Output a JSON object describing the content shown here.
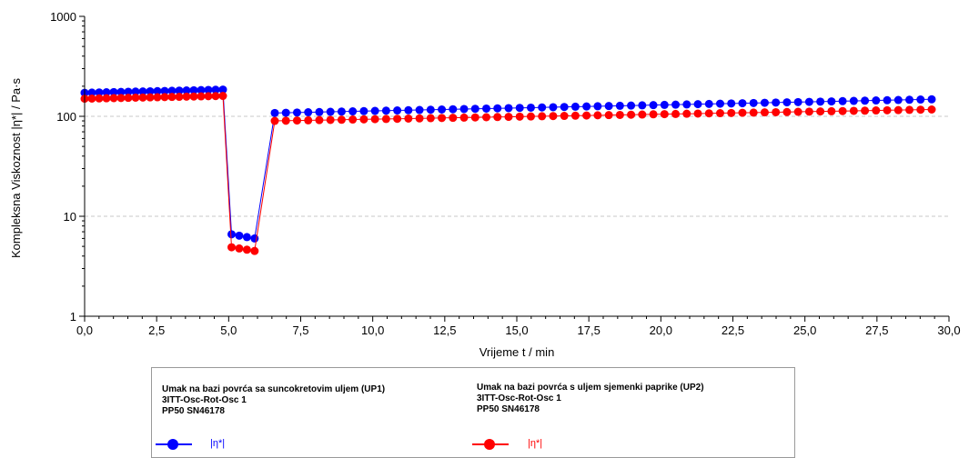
{
  "chart_data": {
    "type": "scatter",
    "xlabel": "Vrijeme t / min",
    "ylabel": "Kompleksna Viskoznost |η*| / Pa·s",
    "xlim": [
      0,
      30
    ],
    "ylim": [
      1,
      1000
    ],
    "y_scale": "log",
    "x_ticks": [
      "0,0",
      "2,5",
      "5,0",
      "7,5",
      "10,0",
      "12,5",
      "15,0",
      "17,5",
      "20,0",
      "22,5",
      "25,0",
      "27,5",
      "30,0"
    ],
    "y_ticks": [
      "1",
      "10",
      "100",
      "1000"
    ],
    "grid": "horizontal dashed",
    "legend_position": "bottom",
    "series": [
      {
        "name": "|η*|",
        "color": "#0000ff",
        "segments": [
          {
            "x_start": 0,
            "x_end": 4.8,
            "n": 20,
            "y_start": 172,
            "y_end": 185
          },
          {
            "x_start": 5.1,
            "x_end": 5.9,
            "n": 4,
            "y_start": 6.6,
            "y_end": 6.0
          },
          {
            "x_start": 6.6,
            "x_end": 29.4,
            "n": 60,
            "y_start": 108,
            "y_end": 148
          }
        ]
      },
      {
        "name": "|η*|",
        "color": "#ff0000",
        "segments": [
          {
            "x_start": 0,
            "x_end": 4.8,
            "n": 20,
            "y_start": 150,
            "y_end": 160
          },
          {
            "x_start": 5.1,
            "x_end": 5.9,
            "n": 4,
            "y_start": 4.9,
            "y_end": 4.5
          },
          {
            "x_start": 6.6,
            "x_end": 29.4,
            "n": 60,
            "y_start": 90,
            "y_end": 117
          }
        ]
      }
    ]
  },
  "legend": {
    "entries": [
      {
        "title": "Umak na bazi povrća sa suncokretovim uljem (UP1)",
        "test": "3ITT-Osc-Rot-Osc 1",
        "system": "PP50  SN46178",
        "symbol": "|η*|",
        "color": "#0000ff"
      },
      {
        "title": "Umak na bazi povrća s uljem sjemenki paprike (UP2)",
        "test": "3ITT-Osc-Rot-Osc 1",
        "system": "PP50  SN46178",
        "symbol": "|η*|",
        "color": "#ff0000"
      }
    ]
  }
}
